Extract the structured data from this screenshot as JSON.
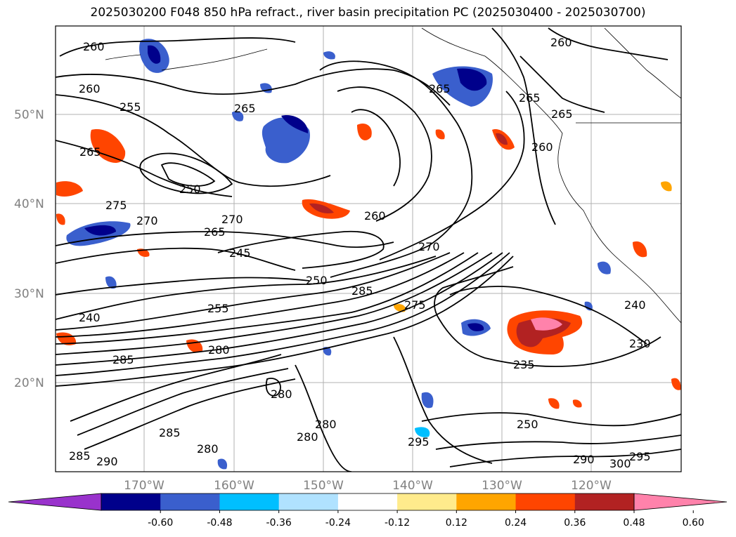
{
  "title": "2025030200 F048 850 hPa refract., river basin precipitation PC (2025030400 - 2025030700)",
  "lat_labels": [
    "50°N",
    "40°N",
    "30°N",
    "20°N"
  ],
  "lon_labels": [
    "170°W",
    "160°W",
    "150°W",
    "140°W",
    "130°W",
    "120°W"
  ],
  "colorbar": {
    "ticks": [
      "-0.60",
      "-0.48",
      "-0.36",
      "-0.24",
      "-0.12",
      "0.12",
      "0.24",
      "0.36",
      "0.48",
      "0.60"
    ],
    "colors": [
      "#9932cc",
      "#00008b",
      "#3a5fcd",
      "#00bfff",
      "#b0e2ff",
      "#ffffff",
      "#ffeb8c",
      "#ffa500",
      "#ff4500",
      "#b22222",
      "#ff82ab"
    ]
  },
  "contour_labels": [
    "260",
    "260",
    "255",
    "265",
    "265",
    "270",
    "275",
    "250",
    "265",
    "270",
    "245",
    "250",
    "255",
    "240",
    "285",
    "280",
    "260",
    "265",
    "260",
    "235",
    "230",
    "240",
    "270",
    "285",
    "280",
    "250",
    "295",
    "290",
    "300",
    "295",
    "280",
    "280",
    "285",
    "290",
    "285",
    "265",
    "260",
    "265",
    "275",
    "280"
  ],
  "map": {
    "land_color": "#ffffff",
    "grid_color": "#b0b0b0",
    "contour_color": "#000000"
  }
}
